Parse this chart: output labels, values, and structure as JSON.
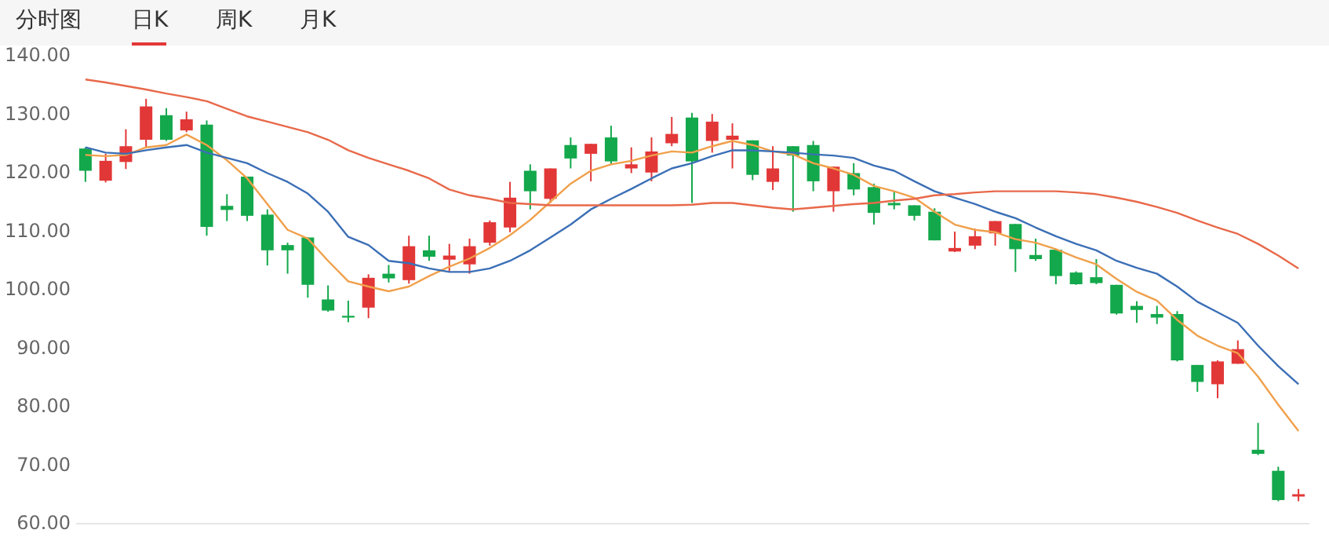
{
  "chart_data": {
    "type": "candlestick",
    "annotations": [
      "分时图",
      "日K",
      "周K",
      "月K"
    ],
    "categories": [
      null,
      null,
      null,
      null,
      null,
      null,
      null,
      null,
      null,
      null,
      null,
      null,
      null,
      null,
      null,
      null,
      null,
      null,
      null,
      null,
      null,
      null,
      null,
      null,
      null,
      null,
      null,
      null,
      null,
      null,
      null,
      null,
      null,
      null,
      null,
      null,
      null,
      null,
      null,
      null,
      null,
      null,
      null,
      null,
      null,
      null,
      null,
      null,
      null,
      null,
      null,
      null,
      null,
      null,
      null,
      null,
      null,
      null,
      null,
      null,
      null
    ],
    "ohlc": [
      [
        124.0,
        124.2,
        118.3,
        120.2
      ],
      [
        118.5,
        123.1,
        118.2,
        121.9
      ],
      [
        121.7,
        127.3,
        120.5,
        124.4
      ],
      [
        125.5,
        132.5,
        124.2,
        131.2
      ],
      [
        129.7,
        130.9,
        125.3,
        125.5
      ],
      [
        127.1,
        130.3,
        126.8,
        129.0
      ],
      [
        128.1,
        128.8,
        109.1,
        110.6
      ],
      [
        114.2,
        116.2,
        111.6,
        113.5
      ],
      [
        119.2,
        119.2,
        111.6,
        112.5
      ],
      [
        112.7,
        113.6,
        104.0,
        106.6
      ],
      [
        107.5,
        107.9,
        102.6,
        106.6
      ],
      [
        108.8,
        108.8,
        98.5,
        100.7
      ],
      [
        98.2,
        100.6,
        96.1,
        96.3
      ],
      [
        95.4,
        98.0,
        94.3,
        95.1
      ],
      [
        96.8,
        102.5,
        95.0,
        101.9
      ],
      [
        102.6,
        104.1,
        101.1,
        101.8
      ],
      [
        101.5,
        109.1,
        100.9,
        107.3
      ],
      [
        106.6,
        109.1,
        104.8,
        105.5
      ],
      [
        105.0,
        107.7,
        103.0,
        105.7
      ],
      [
        104.2,
        108.6,
        102.6,
        107.3
      ],
      [
        107.9,
        111.7,
        107.4,
        111.4
      ],
      [
        110.5,
        118.3,
        109.7,
        115.6
      ],
      [
        120.2,
        121.3,
        113.6,
        116.7
      ],
      [
        115.4,
        120.6,
        114.7,
        120.6
      ],
      [
        124.6,
        125.9,
        120.6,
        122.3
      ],
      [
        123.1,
        124.8,
        118.4,
        124.8
      ],
      [
        125.9,
        127.9,
        121.3,
        121.8
      ],
      [
        120.6,
        124.2,
        119.8,
        121.3
      ],
      [
        119.9,
        125.9,
        118.4,
        123.5
      ],
      [
        124.9,
        129.4,
        124.4,
        126.5
      ],
      [
        129.3,
        130.1,
        114.7,
        121.8
      ],
      [
        125.3,
        129.9,
        123.3,
        128.6
      ],
      [
        125.5,
        128.3,
        120.6,
        126.2
      ],
      [
        125.4,
        125.4,
        118.6,
        119.5
      ],
      [
        118.3,
        124.4,
        116.9,
        120.6
      ],
      [
        124.4,
        124.4,
        113.2,
        122.8
      ],
      [
        124.6,
        125.3,
        116.7,
        118.4
      ],
      [
        116.7,
        120.9,
        113.2,
        120.9
      ],
      [
        119.8,
        121.5,
        116.0,
        117.0
      ],
      [
        117.4,
        118.0,
        111.0,
        113.0
      ],
      [
        114.7,
        116.7,
        113.6,
        114.3
      ],
      [
        114.3,
        114.3,
        111.7,
        112.5
      ],
      [
        113.2,
        113.8,
        108.3,
        108.3
      ],
      [
        106.4,
        109.8,
        106.3,
        107.0
      ],
      [
        107.4,
        110.3,
        106.8,
        109.0
      ],
      [
        109.5,
        111.6,
        107.4,
        111.6
      ],
      [
        111.1,
        111.1,
        102.9,
        106.8
      ],
      [
        105.8,
        108.6,
        104.8,
        105.1
      ],
      [
        106.7,
        106.7,
        100.8,
        102.2
      ],
      [
        102.8,
        103.0,
        100.7,
        100.8
      ],
      [
        102.0,
        105.1,
        100.8,
        101.0
      ],
      [
        100.7,
        100.7,
        95.6,
        95.8
      ],
      [
        97.1,
        97.9,
        94.2,
        96.4
      ],
      [
        95.7,
        97.1,
        94.0,
        95.1
      ],
      [
        95.7,
        96.2,
        87.6,
        87.8
      ],
      [
        87.0,
        87.0,
        82.4,
        84.1
      ],
      [
        83.7,
        87.8,
        81.3,
        87.6
      ],
      [
        87.2,
        91.2,
        87.2,
        89.7
      ],
      [
        72.5,
        77.1,
        71.6,
        71.8
      ],
      [
        68.9,
        69.6,
        63.7,
        63.9
      ],
      [
        64.5,
        65.8,
        63.7,
        64.9
      ]
    ],
    "colors": [
      "#13a84b",
      "#e23737",
      "#e23737",
      "#e23737",
      "#13a84b",
      "#e23737",
      "#13a84b",
      "#13a84b",
      "#13a84b",
      "#13a84b",
      "#13a84b",
      "#13a84b",
      "#13a84b",
      "#13a84b",
      "#e23737",
      "#13a84b",
      "#e23737",
      "#13a84b",
      "#e23737",
      "#e23737",
      "#e23737",
      "#e23737",
      "#13a84b",
      "#e23737",
      "#13a84b",
      "#e23737",
      "#13a84b",
      "#e23737",
      "#e23737",
      "#e23737",
      "#13a84b",
      "#e23737",
      "#e23737",
      "#13a84b",
      "#e23737",
      "#13a84b",
      "#13a84b",
      "#e23737",
      "#13a84b",
      "#13a84b",
      "#13a84b",
      "#13a84b",
      "#13a84b",
      "#e23737",
      "#e23737",
      "#e23737",
      "#13a84b",
      "#13a84b",
      "#13a84b",
      "#13a84b",
      "#13a84b",
      "#13a84b",
      "#13a84b",
      "#13a84b",
      "#13a84b",
      "#13a84b",
      "#e23737",
      "#e23737",
      "#13a84b",
      "#13a84b",
      "#e23737"
    ],
    "series": [
      {
        "type": "line",
        "color": "#f0a04b",
        "values": [
          122.9,
          122.7,
          122.9,
          124.2,
          124.6,
          126.4,
          124.6,
          122.0,
          118.9,
          114.5,
          110.1,
          108.6,
          104.8,
          101.3,
          100.4,
          99.6,
          100.4,
          102.2,
          103.8,
          105.2,
          107.0,
          109.2,
          111.8,
          114.9,
          118.0,
          120.2,
          121.3,
          121.9,
          122.8,
          123.5,
          123.3,
          124.4,
          125.3,
          124.6,
          123.5,
          123.0,
          121.5,
          120.6,
          119.5,
          117.6,
          116.7,
          115.6,
          113.2,
          111.0,
          110.1,
          109.7,
          108.5,
          107.9,
          106.8,
          105.4,
          104.2,
          101.7,
          99.5,
          98.0,
          94.7,
          92.0,
          90.3,
          89.0,
          85.0,
          80.2,
          75.7
        ]
      },
      {
        "type": "line",
        "color": "#3b6fb6",
        "values": [
          124.2,
          123.3,
          123.1,
          123.7,
          124.2,
          124.6,
          123.3,
          122.4,
          121.5,
          119.8,
          118.3,
          116.3,
          113.2,
          108.9,
          107.5,
          104.8,
          104.4,
          103.5,
          102.9,
          102.9,
          103.5,
          104.8,
          106.6,
          108.8,
          111.0,
          113.6,
          115.4,
          117.1,
          118.9,
          120.6,
          121.5,
          122.7,
          123.7,
          123.7,
          123.5,
          123.3,
          123.0,
          122.8,
          122.4,
          121.1,
          120.2,
          118.4,
          116.7,
          115.6,
          114.5,
          113.2,
          112.1,
          110.5,
          109.0,
          107.7,
          106.6,
          104.8,
          103.6,
          102.6,
          100.4,
          97.8,
          96.0,
          94.2,
          90.3,
          86.8,
          83.7
        ]
      },
      {
        "type": "line",
        "color": "#e8694a",
        "values": [
          135.8,
          135.3,
          134.7,
          134.1,
          133.4,
          132.8,
          132.1,
          130.8,
          129.5,
          128.6,
          127.7,
          126.8,
          125.5,
          123.7,
          122.4,
          121.3,
          120.2,
          118.9,
          117.0,
          116.0,
          115.4,
          114.7,
          114.5,
          114.3,
          114.3,
          114.3,
          114.3,
          114.3,
          114.3,
          114.3,
          114.4,
          114.7,
          114.7,
          114.3,
          113.9,
          113.6,
          113.9,
          114.2,
          114.5,
          114.7,
          115.1,
          115.4,
          116.0,
          116.2,
          116.5,
          116.7,
          116.7,
          116.7,
          116.7,
          116.5,
          116.2,
          115.6,
          114.9,
          114.0,
          113.0,
          111.7,
          110.5,
          109.4,
          107.7,
          105.7,
          103.5
        ]
      }
    ],
    "ylim": [
      60,
      140
    ],
    "yticks": [
      {
        "value": 60,
        "label": "60.00"
      },
      {
        "value": 70,
        "label": "70.00"
      },
      {
        "value": 80,
        "label": "80.00"
      },
      {
        "value": 90,
        "label": "90.00"
      },
      {
        "value": 100,
        "label": "100.00"
      },
      {
        "value": 110,
        "label": "110.00"
      },
      {
        "value": 120,
        "label": "120.00"
      },
      {
        "value": 130,
        "label": "130.00"
      },
      {
        "value": 140,
        "label": "140.00"
      }
    ],
    "tick_labels": "y",
    "grid": false
  }
}
